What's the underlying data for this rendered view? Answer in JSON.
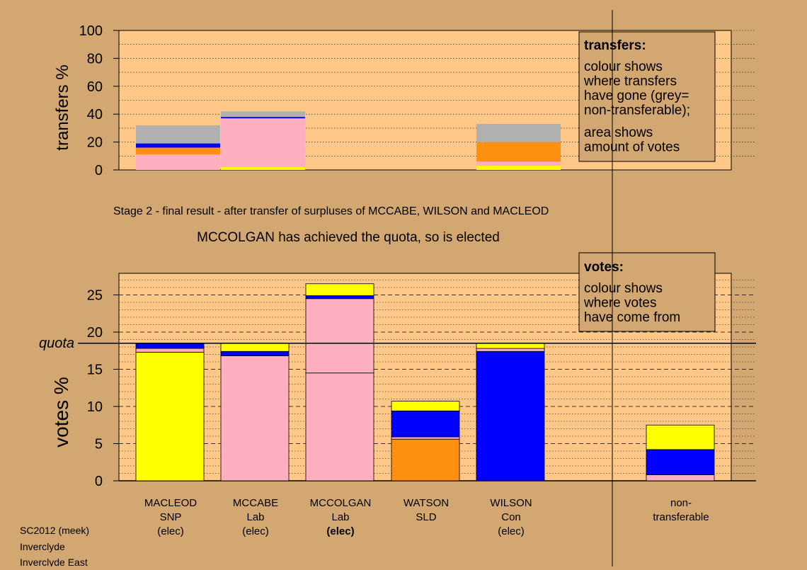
{
  "caption": "Stage 2 - final result - after transfer of surpluses of MCCABE, WILSON and MACLEOD",
  "status": "MCCOLGAN has achieved the quota, so is elected",
  "footer": [
    "SC2012 (meek)",
    "Inverclyde",
    "Inverclyde East"
  ],
  "colors": {
    "SNP": "#ffff00",
    "Lab": "#ffb0c0",
    "SLD": "#ff9010",
    "Con": "#0000ff",
    "nontransferable": "#b0b0b0",
    "background": "#d2a772",
    "plot_bg": "#ffc888"
  },
  "chart_data": [
    {
      "type": "bar",
      "ylabel": "transfers %",
      "ylim": [
        0,
        100
      ],
      "yticks": [
        "0",
        "20",
        "40",
        "60",
        "80",
        "100"
      ],
      "grid": true,
      "legend": {
        "title": "transfers:",
        "lines1": [
          "colour shows",
          "where transfers",
          "have gone (grey=",
          "non-transferable);"
        ],
        "lines2": [
          "area shows",
          "amount of votes"
        ]
      },
      "bars": [
        {
          "slot": 0,
          "width_factor": 1.0,
          "segments": [
            {
              "value": 11,
              "color": "Lab"
            },
            {
              "value": 5,
              "color": "SLD"
            },
            {
              "value": 3,
              "color": "Con"
            },
            {
              "value": 13,
              "color": "nontransferable"
            }
          ]
        },
        {
          "slot": 1,
          "width_factor": 1.0,
          "segments": [
            {
              "value": 2,
              "color": "SNP"
            },
            {
              "value": 35,
              "color": "Lab"
            },
            {
              "value": 1,
              "color": "Con"
            },
            {
              "value": 4,
              "color": "nontransferable"
            }
          ]
        },
        {
          "slot": 4,
          "width_factor": 1.0,
          "segments": [
            {
              "value": 3,
              "color": "SNP"
            },
            {
              "value": 3,
              "color": "Lab"
            },
            {
              "value": 14,
              "color": "SLD"
            },
            {
              "value": 13,
              "color": "nontransferable"
            }
          ]
        }
      ]
    },
    {
      "type": "bar",
      "ylabel": "votes %",
      "ylim": [
        0,
        28
      ],
      "yticks": [
        "0",
        "5",
        "10",
        "15",
        "20",
        "25"
      ],
      "quota": 18.5,
      "quota_label": "quota",
      "grid": true,
      "legend": {
        "title": "votes:",
        "lines": [
          "colour shows",
          "where votes",
          "have come from"
        ]
      },
      "categories": [
        {
          "name": "MACLEOD",
          "party": "SNP",
          "status": "(elec)",
          "bold": false
        },
        {
          "name": "MCCABE",
          "party": "Lab",
          "status": "(elec)",
          "bold": false
        },
        {
          "name": "MCCOLGAN",
          "party": "Lab",
          "status": "(elec)",
          "bold": true
        },
        {
          "name": "WATSON",
          "party": "SLD",
          "status": "",
          "bold": false
        },
        {
          "name": "WILSON",
          "party": "Con",
          "status": "(elec)",
          "bold": false
        },
        {
          "name": "non-",
          "party": "transferable",
          "status": "",
          "bold": false
        }
      ],
      "bars": [
        {
          "slot": 0,
          "segments": [
            {
              "value": 17.3,
              "color": "SNP"
            },
            {
              "value": 0.5,
              "color": "Lab"
            },
            {
              "value": 0.7,
              "color": "Con"
            }
          ]
        },
        {
          "slot": 1,
          "segments": [
            {
              "value": 16.8,
              "color": "Lab"
            },
            {
              "value": 0.6,
              "color": "Con"
            },
            {
              "value": 1.1,
              "color": "SNP"
            }
          ]
        },
        {
          "slot": 2,
          "segments": [
            {
              "value": 14.5,
              "color": "Lab"
            },
            {
              "value": 10.0,
              "color": "Lab"
            },
            {
              "value": 0.4,
              "color": "Con"
            },
            {
              "value": 1.6,
              "color": "SNP"
            }
          ]
        },
        {
          "slot": 3,
          "segments": [
            {
              "value": 5.6,
              "color": "SLD"
            },
            {
              "value": 0.3,
              "color": "Lab"
            },
            {
              "value": 3.5,
              "color": "Con"
            },
            {
              "value": 1.3,
              "color": "SNP"
            }
          ]
        },
        {
          "slot": 4,
          "segments": [
            {
              "value": 17.4,
              "color": "Con"
            },
            {
              "value": 0.4,
              "color": "Lab"
            },
            {
              "value": 0.7,
              "color": "SNP"
            }
          ]
        },
        {
          "slot": 6,
          "segments": [
            {
              "value": 0.8,
              "color": "Lab"
            },
            {
              "value": 3.4,
              "color": "Con"
            },
            {
              "value": 3.3,
              "color": "SNP"
            }
          ]
        }
      ]
    }
  ]
}
